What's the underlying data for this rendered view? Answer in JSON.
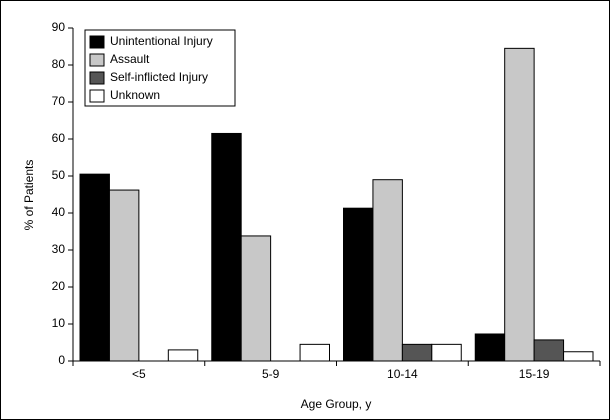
{
  "chart_data": {
    "type": "bar",
    "categories": [
      "<5",
      "5-9",
      "10-14",
      "15-19"
    ],
    "series": [
      {
        "name": "Unintentional Injury",
        "color": "#000000",
        "values": [
          50.5,
          61.5,
          41.3,
          7.3
        ]
      },
      {
        "name": "Assault",
        "color": "#c8c8c8",
        "values": [
          46.2,
          33.8,
          49,
          84.5
        ]
      },
      {
        "name": "Self-inflicted Injury",
        "color": "#555555",
        "values": [
          0,
          0,
          4.5,
          5.7
        ]
      },
      {
        "name": "Unknown",
        "color": "#ffffff",
        "values": [
          3,
          4.5,
          4.5,
          2.5
        ]
      }
    ],
    "x_label": "Age Group, y",
    "y_label": "% of Patients",
    "ylim": [
      0,
      90
    ],
    "yticks": [
      0,
      10,
      20,
      30,
      40,
      50,
      60,
      70,
      80,
      90
    ],
    "legend": "upper left"
  }
}
